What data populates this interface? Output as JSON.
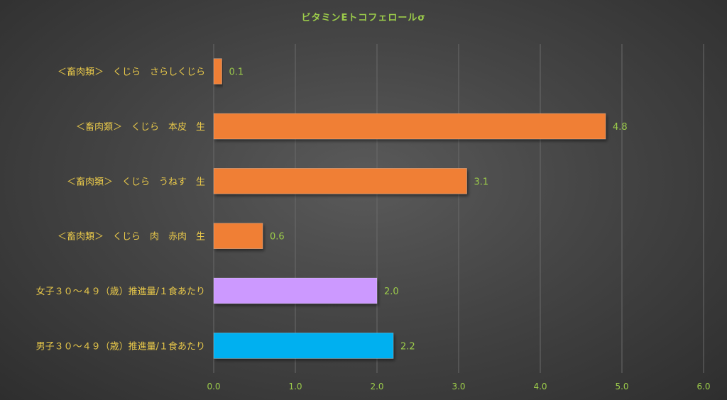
{
  "chart_data": {
    "type": "bar",
    "orientation": "horizontal",
    "title": "ビタミンEトコフェロールσ",
    "categories": [
      "＜畜肉類＞　くじら　さらしくじら",
      "＜畜肉類＞　くじら　本皮　生",
      "＜畜肉類＞　くじら　うねす　生",
      "＜畜肉類＞　くじら　肉　赤肉　生",
      "女子３０～４９（歳）推進量/１食あたり",
      "男子３０～４９（歳）推進量/１食あたり"
    ],
    "values": [
      0.1,
      4.8,
      3.1,
      0.6,
      2.0,
      2.2
    ],
    "value_labels": [
      "0.1",
      "4.8",
      "3.1",
      "0.6",
      "2.0",
      "2.2"
    ],
    "bar_colors": [
      "#f07f35",
      "#f07f35",
      "#f07f35",
      "#f07f35",
      "#cc99ff",
      "#00b0f0"
    ],
    "xlim": [
      0,
      6
    ],
    "xticks": [
      "0.0",
      "1.0",
      "2.0",
      "3.0",
      "4.0",
      "5.0",
      "6.0"
    ],
    "grid": "vertical",
    "legend": "none",
    "colors": {
      "title": "#9ccc4a",
      "category_label": "#e8c84a",
      "tick_label": "#9ccc4a",
      "value_label": "#9ccc4a",
      "gridline": "#6a6a6a"
    }
  }
}
